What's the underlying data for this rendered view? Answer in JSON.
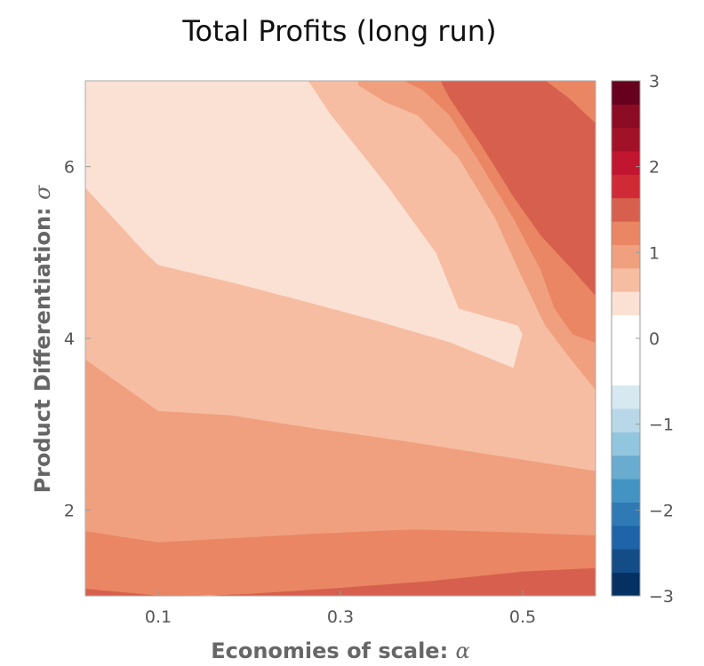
{
  "chart_data": {
    "type": "heatmap",
    "title": "Total Profits (long run)",
    "xlabel": "Economies of scale: ",
    "xlabel_symbol": "α",
    "ylabel": "Product Differentiation: ",
    "ylabel_symbol": "σ",
    "xlim": [
      0.02,
      0.58
    ],
    "ylim": [
      1.0,
      7.0
    ],
    "x_ticks": [
      {
        "value": 0.1,
        "label": "0.1"
      },
      {
        "value": 0.3,
        "label": "0.3"
      },
      {
        "value": 0.5,
        "label": "0.5"
      }
    ],
    "y_ticks": [
      {
        "value": 2,
        "label": "2"
      },
      {
        "value": 4,
        "label": "4"
      },
      {
        "value": 6,
        "label": "6"
      }
    ],
    "colorbar": {
      "range": [
        -3,
        3
      ],
      "step": 0.25,
      "ticks": [
        {
          "value": 3,
          "label": "3"
        },
        {
          "value": 2,
          "label": "2"
        },
        {
          "value": 1,
          "label": "1"
        },
        {
          "value": 0,
          "label": "0"
        },
        {
          "value": -1,
          "label": "−1"
        },
        {
          "value": -2,
          "label": "−2"
        },
        {
          "value": -3,
          "label": "−3"
        }
      ],
      "colors": [
        "#053061",
        "#134c87",
        "#1f63a8",
        "#2f79b5",
        "#4393c3",
        "#6aacd0",
        "#92c5de",
        "#b8d8e9",
        "#d6e9f1",
        "#ffffff",
        "#ffffff",
        "#ffffff",
        "#fbe1d4",
        "#f6bda2",
        "#f0a07e",
        "#ea8663",
        "#d6604d",
        "#d12a37",
        "#c21530",
        "#a11228",
        "#8d0c25",
        "#67001f"
      ]
    },
    "regions": [
      {
        "level": "0.5 to 0.75",
        "color": "#fbe1d4",
        "points": [
          [
            0.02,
            5.75
          ],
          [
            0.085,
            5.0
          ],
          [
            0.1,
            4.85
          ],
          [
            0.18,
            4.65
          ],
          [
            0.27,
            4.4
          ],
          [
            0.34,
            4.2
          ],
          [
            0.42,
            3.95
          ],
          [
            0.49,
            3.65
          ],
          [
            0.5,
            4.05
          ],
          [
            0.495,
            4.15
          ],
          [
            0.43,
            4.35
          ],
          [
            0.405,
            5.0
          ],
          [
            0.35,
            5.8
          ],
          [
            0.29,
            6.6
          ],
          [
            0.265,
            7.0
          ],
          [
            0.02,
            7.0
          ]
        ]
      },
      {
        "level": "0.75 to 1.0",
        "color": "#f6bda2",
        "points": [
          [
            0.02,
            3.75
          ],
          [
            0.1,
            3.15
          ],
          [
            0.18,
            3.1
          ],
          [
            0.27,
            2.95
          ],
          [
            0.37,
            2.8
          ],
          [
            0.46,
            2.65
          ],
          [
            0.58,
            2.45
          ],
          [
            0.58,
            3.4
          ],
          [
            0.55,
            3.8
          ],
          [
            0.525,
            4.15
          ],
          [
            0.5,
            4.7
          ],
          [
            0.47,
            5.4
          ],
          [
            0.43,
            6.1
          ],
          [
            0.385,
            6.6
          ],
          [
            0.35,
            6.75
          ],
          [
            0.32,
            6.95
          ],
          [
            0.32,
            7.0
          ],
          [
            0.265,
            7.0
          ],
          [
            0.29,
            6.6
          ],
          [
            0.35,
            5.8
          ],
          [
            0.405,
            5.0
          ],
          [
            0.43,
            4.35
          ],
          [
            0.495,
            4.15
          ],
          [
            0.5,
            4.05
          ],
          [
            0.49,
            3.65
          ],
          [
            0.42,
            3.95
          ],
          [
            0.34,
            4.2
          ],
          [
            0.27,
            4.4
          ],
          [
            0.18,
            4.65
          ],
          [
            0.1,
            4.85
          ],
          [
            0.085,
            5.0
          ],
          [
            0.02,
            5.75
          ]
        ]
      },
      {
        "level": "1.0 to 1.25",
        "color": "#f0a07e",
        "points": [
          [
            0.02,
            1.75
          ],
          [
            0.1,
            1.62
          ],
          [
            0.27,
            1.72
          ],
          [
            0.38,
            1.77
          ],
          [
            0.48,
            1.74
          ],
          [
            0.58,
            1.7
          ],
          [
            0.58,
            2.45
          ],
          [
            0.46,
            2.65
          ],
          [
            0.37,
            2.8
          ],
          [
            0.27,
            2.95
          ],
          [
            0.18,
            3.1
          ],
          [
            0.1,
            3.15
          ],
          [
            0.02,
            3.75
          ]
        ]
      },
      {
        "level": "1.0 to 1.25",
        "color": "#f0a07e",
        "points": [
          [
            0.58,
            3.4
          ],
          [
            0.58,
            3.95
          ],
          [
            0.555,
            4.05
          ],
          [
            0.535,
            4.35
          ],
          [
            0.52,
            4.8
          ],
          [
            0.49,
            5.4
          ],
          [
            0.45,
            6.1
          ],
          [
            0.42,
            6.6
          ],
          [
            0.39,
            6.9
          ],
          [
            0.37,
            7.0
          ],
          [
            0.32,
            7.0
          ],
          [
            0.32,
            6.95
          ],
          [
            0.35,
            6.75
          ],
          [
            0.385,
            6.6
          ],
          [
            0.43,
            6.1
          ],
          [
            0.47,
            5.4
          ],
          [
            0.5,
            4.7
          ],
          [
            0.525,
            4.15
          ],
          [
            0.55,
            3.8
          ]
        ]
      },
      {
        "level": "1.25 to 1.5",
        "color": "#ea8663",
        "points": [
          [
            0.02,
            1.08
          ],
          [
            0.1,
            1.0
          ],
          [
            0.2,
            1.02
          ],
          [
            0.3,
            1.09
          ],
          [
            0.4,
            1.17
          ],
          [
            0.5,
            1.28
          ],
          [
            0.58,
            1.32
          ],
          [
            0.58,
            1.7
          ],
          [
            0.48,
            1.74
          ],
          [
            0.38,
            1.77
          ],
          [
            0.27,
            1.72
          ],
          [
            0.1,
            1.62
          ],
          [
            0.02,
            1.75
          ]
        ]
      },
      {
        "level": "1.25 to 1.5",
        "color": "#ea8663",
        "points": [
          [
            0.58,
            3.95
          ],
          [
            0.58,
            4.5
          ],
          [
            0.555,
            4.8
          ],
          [
            0.52,
            5.2
          ],
          [
            0.49,
            5.65
          ],
          [
            0.455,
            6.25
          ],
          [
            0.42,
            6.8
          ],
          [
            0.41,
            7.0
          ],
          [
            0.37,
            7.0
          ],
          [
            0.39,
            6.9
          ],
          [
            0.42,
            6.6
          ],
          [
            0.45,
            6.1
          ],
          [
            0.49,
            5.4
          ],
          [
            0.52,
            4.8
          ],
          [
            0.535,
            4.35
          ],
          [
            0.555,
            4.05
          ]
        ]
      },
      {
        "level": "1.25 to 1.5",
        "color": "#ea8663",
        "points": [
          [
            0.525,
            7.0
          ],
          [
            0.58,
            7.0
          ],
          [
            0.58,
            6.5
          ],
          [
            0.55,
            6.8
          ]
        ]
      },
      {
        "level": "1.5 to 1.75",
        "color": "#d6604d",
        "points": [
          [
            0.02,
            1.0
          ],
          [
            0.1,
            1.0
          ],
          [
            0.02,
            1.08
          ]
        ]
      },
      {
        "level": "1.5 to 1.75",
        "color": "#d6604d",
        "points": [
          [
            0.15,
            1.0
          ],
          [
            0.58,
            1.0
          ],
          [
            0.58,
            1.32
          ],
          [
            0.5,
            1.28
          ],
          [
            0.4,
            1.17
          ],
          [
            0.3,
            1.09
          ],
          [
            0.2,
            1.02
          ]
        ]
      },
      {
        "level": "1.5 to 1.75",
        "color": "#d6604d",
        "points": [
          [
            0.41,
            7.0
          ],
          [
            0.42,
            6.8
          ],
          [
            0.455,
            6.25
          ],
          [
            0.49,
            5.65
          ],
          [
            0.52,
            5.2
          ],
          [
            0.555,
            4.8
          ],
          [
            0.58,
            4.5
          ],
          [
            0.58,
            6.5
          ],
          [
            0.55,
            6.8
          ],
          [
            0.525,
            7.0
          ]
        ]
      }
    ]
  }
}
